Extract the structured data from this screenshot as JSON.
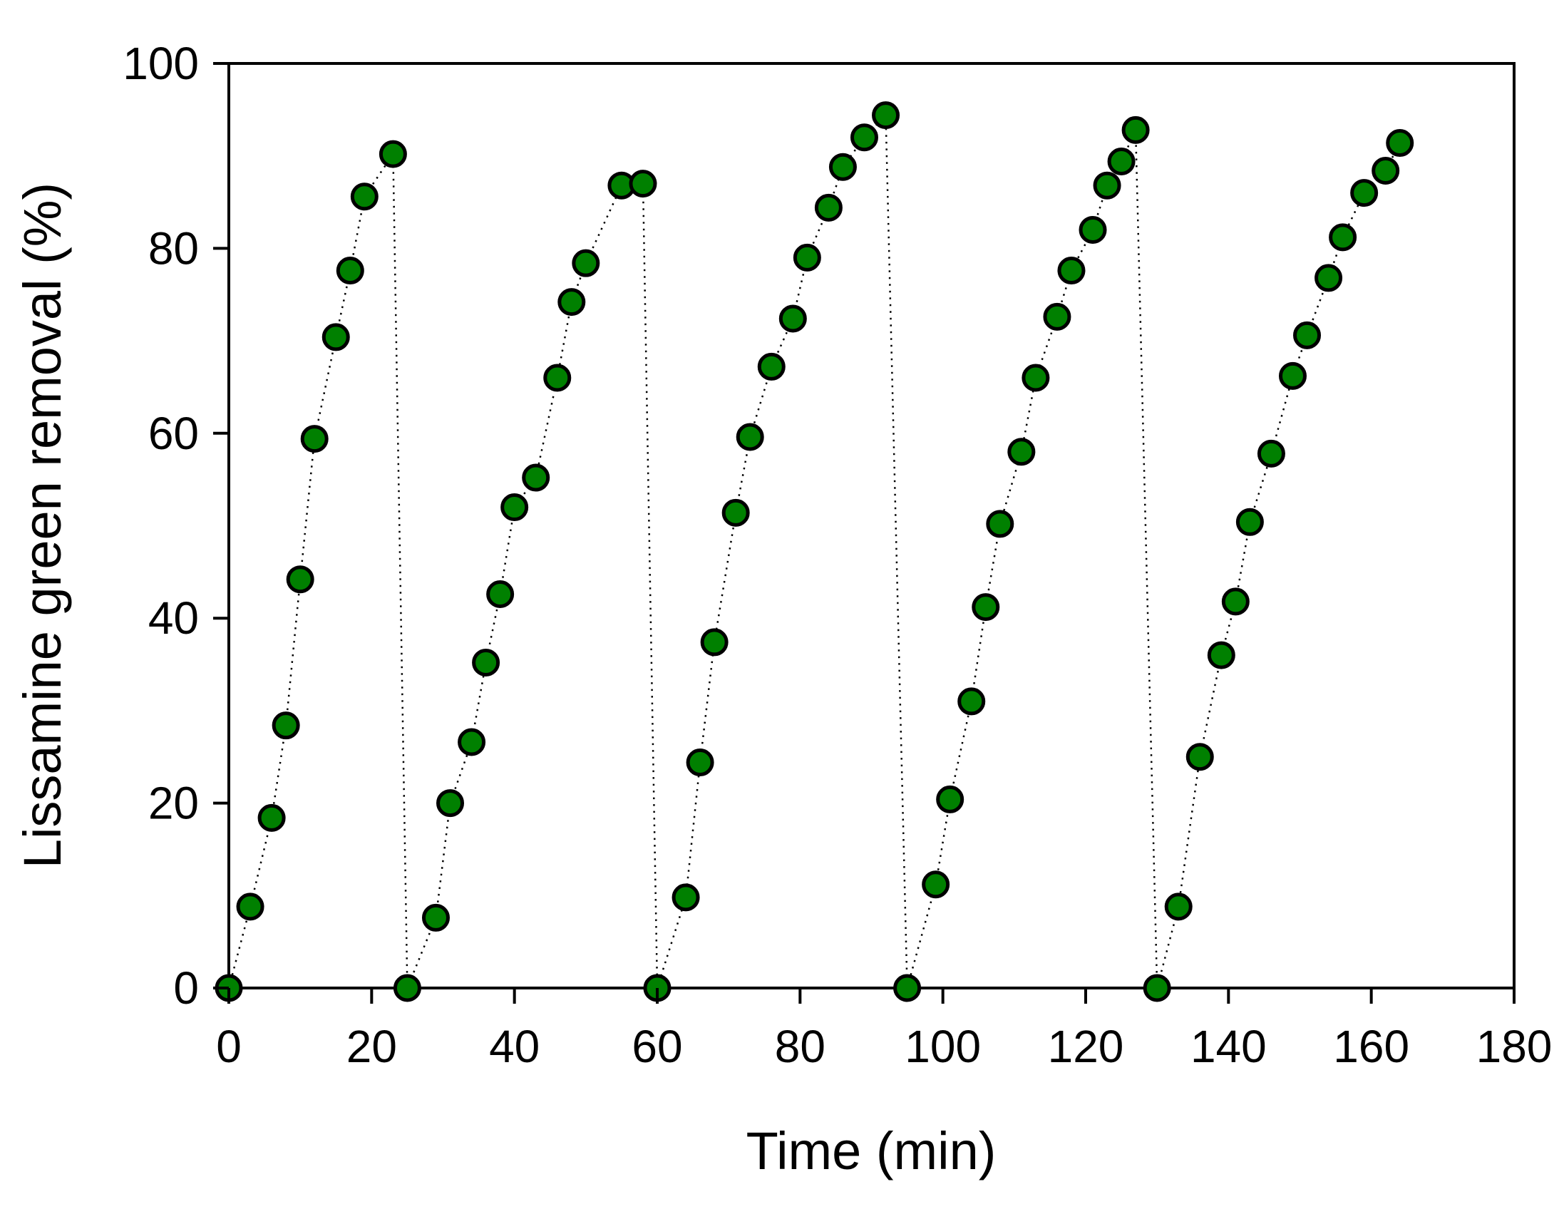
{
  "chart_data": {
    "type": "scatter",
    "title": "",
    "xlabel": "Time (min)",
    "ylabel": "Lissamine green removal (%)",
    "xlim": [
      0,
      180
    ],
    "ylim": [
      0,
      100
    ],
    "xticks": [
      0,
      20,
      40,
      60,
      80,
      100,
      120,
      140,
      160,
      180
    ],
    "yticks": [
      0,
      20,
      40,
      60,
      80,
      100
    ],
    "grid": false,
    "legend": "none",
    "connector": "dotted",
    "marker_color": "#008000",
    "marker_edge_color": "#000000",
    "series": [
      {
        "x": [
          0,
          3,
          6,
          8,
          10,
          12,
          15,
          17,
          19,
          23,
          25,
          29,
          31,
          34,
          36,
          38,
          40,
          43,
          46,
          48,
          50,
          55,
          58,
          60,
          64,
          66,
          68,
          71,
          73,
          76,
          79,
          81,
          84,
          86,
          89,
          92,
          95,
          99,
          101,
          104,
          106,
          108,
          111,
          113,
          116,
          118,
          121,
          123,
          125,
          127,
          130,
          133,
          136,
          139,
          141,
          143,
          146,
          149,
          151,
          154,
          156,
          159,
          162,
          164
        ],
        "y": [
          0,
          8.8,
          18.4,
          28.4,
          44.2,
          59.4,
          70.4,
          77.6,
          85.6,
          90.2,
          0,
          7.6,
          20.0,
          26.6,
          35.2,
          42.6,
          52.0,
          55.2,
          66.0,
          74.2,
          78.4,
          86.8,
          87.0,
          0,
          9.8,
          24.4,
          37.4,
          51.4,
          59.6,
          67.2,
          72.4,
          79.0,
          84.4,
          88.8,
          92.0,
          94.4,
          0,
          11.2,
          20.4,
          31.0,
          41.2,
          50.2,
          58.0,
          66.0,
          72.6,
          77.6,
          82.0,
          86.8,
          89.4,
          92.8,
          0,
          8.8,
          25.0,
          36.0,
          41.8,
          50.4,
          57.8,
          66.2,
          70.6,
          76.8,
          81.2,
          86.0,
          88.4,
          91.4
        ]
      }
    ]
  }
}
